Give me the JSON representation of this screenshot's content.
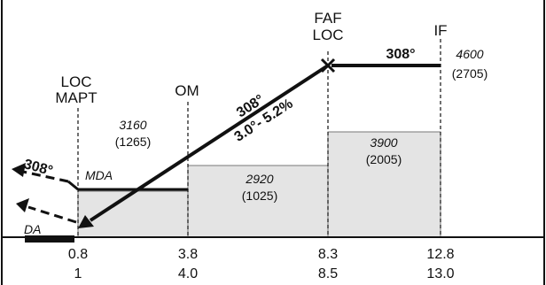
{
  "fixes": {
    "loc_mapt": {
      "line1": "LOC",
      "line2": "MAPT"
    },
    "om": {
      "label": "OM"
    },
    "faf": {
      "line1": "FAF",
      "line2": "LOC"
    },
    "if": {
      "label": "IF"
    }
  },
  "segments": {
    "intermediate": {
      "course": "308°",
      "altitude_msl": "4600",
      "altitude_agl": "(2705)"
    },
    "final": {
      "course": "308°",
      "glidepath": "3.0°- 5.2%"
    },
    "missed": {
      "course": "308°"
    }
  },
  "altitudes": {
    "glideslope_at_om": {
      "msl": "3160",
      "agl": "(1265)"
    },
    "om_to_faf": {
      "msl": "2920",
      "agl": "(1025)"
    },
    "faf_to_if": {
      "msl": "3900",
      "agl": "(2005)"
    }
  },
  "minimums": {
    "mda": "MDA",
    "da": "DA"
  },
  "distances_nm": {
    "row1": [
      "0.8",
      "3.8",
      "8.3",
      "12.8"
    ],
    "row2": [
      "1",
      "4.0",
      "8.5",
      "13.0"
    ]
  },
  "colors": {
    "shaded_block": "#e4e4e4",
    "ink": "#111111"
  }
}
